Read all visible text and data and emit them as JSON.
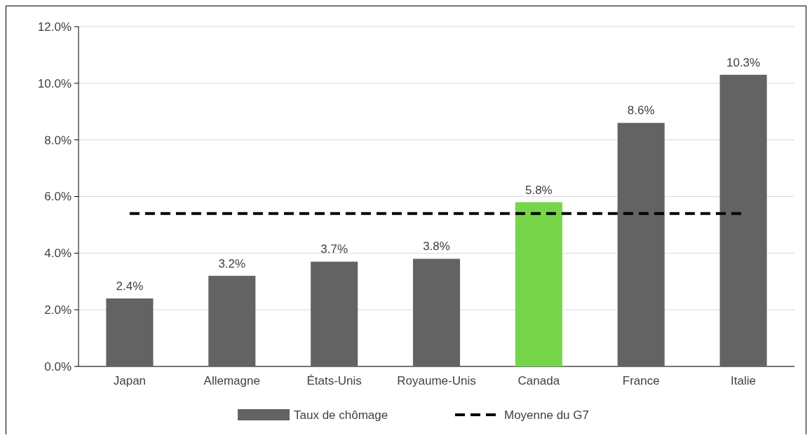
{
  "chart_data": {
    "type": "bar",
    "categories": [
      "Japan",
      "Allemagne",
      "États-Unis",
      "Royaume-Unis",
      "Canada",
      "France",
      "Italie"
    ],
    "series": [
      {
        "name": "Taux de chômage",
        "color": "#636363",
        "colors": [
          "#636363",
          "#636363",
          "#636363",
          "#636363",
          "#77d54a",
          "#636363",
          "#636363"
        ],
        "values": [
          2.4,
          3.2,
          3.7,
          3.8,
          5.8,
          8.6,
          10.3
        ],
        "value_labels": [
          "2.4%",
          "3.2%",
          "3.7%",
          "3.8%",
          "5.8%",
          "8.6%",
          "10.3%"
        ]
      },
      {
        "name": "Moyenne du G7",
        "type": "line",
        "color": "#000000",
        "line_style": "dashed",
        "marker": "none",
        "values": [
          5.4,
          5.4,
          5.4,
          5.4,
          5.4,
          5.4,
          5.4
        ]
      }
    ],
    "ylim": [
      0,
      12
    ],
    "yticks": [
      {
        "value": 0,
        "label": "0.0%"
      },
      {
        "value": 2,
        "label": "2.0%"
      },
      {
        "value": 4,
        "label": "4.0%"
      },
      {
        "value": 6,
        "label": "6.0%"
      },
      {
        "value": 8,
        "label": "8.0%"
      },
      {
        "value": 10,
        "label": "10.0%"
      },
      {
        "value": 12,
        "label": "12.0%"
      }
    ],
    "grid": "y",
    "legend": "bottom"
  }
}
